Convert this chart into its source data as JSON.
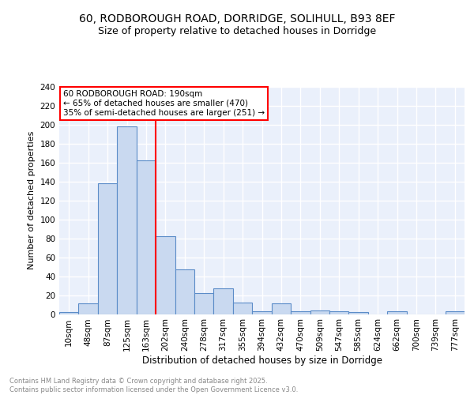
{
  "title_line1": "60, RODBOROUGH ROAD, DORRIDGE, SOLIHULL, B93 8EF",
  "title_line2": "Size of property relative to detached houses in Dorridge",
  "xlabel": "Distribution of detached houses by size in Dorridge",
  "ylabel": "Number of detached properties",
  "bar_labels": [
    "10sqm",
    "48sqm",
    "87sqm",
    "125sqm",
    "163sqm",
    "202sqm",
    "240sqm",
    "278sqm",
    "317sqm",
    "355sqm",
    "394sqm",
    "432sqm",
    "470sqm",
    "509sqm",
    "547sqm",
    "585sqm",
    "624sqm",
    "662sqm",
    "700sqm",
    "739sqm",
    "777sqm"
  ],
  "bar_values": [
    2,
    11,
    138,
    198,
    162,
    82,
    47,
    22,
    27,
    12,
    3,
    11,
    3,
    4,
    3,
    2,
    0,
    3,
    0,
    0,
    3
  ],
  "bar_color": "#c9d9f0",
  "bar_edgecolor": "#5b8cc8",
  "background_color": "#eaf0fb",
  "grid_color": "#ffffff",
  "vline_x_index": 4.5,
  "vline_color": "red",
  "annotation_text": "60 RODBOROUGH ROAD: 190sqm\n← 65% of detached houses are smaller (470)\n35% of semi-detached houses are larger (251) →",
  "annotation_box_edgecolor": "red",
  "annotation_box_facecolor": "white",
  "footnote": "Contains HM Land Registry data © Crown copyright and database right 2025.\nContains public sector information licensed under the Open Government Licence v3.0.",
  "ylim": [
    0,
    240
  ],
  "yticks": [
    0,
    20,
    40,
    60,
    80,
    100,
    120,
    140,
    160,
    180,
    200,
    220,
    240
  ]
}
